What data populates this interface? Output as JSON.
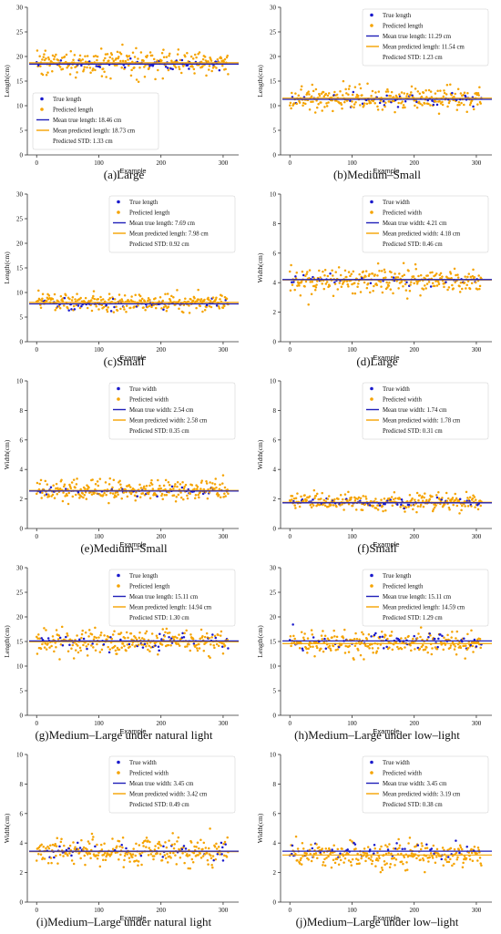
{
  "colors": {
    "true_series": "#1a1acc",
    "pred_series": "#f5a300",
    "true_mean_line": "#1f1fb8",
    "pred_mean_line": "#f5a300",
    "axis": "#333333",
    "text": "#111111"
  },
  "chart_data": [
    {
      "panel_id": "a",
      "type": "scatter",
      "caption": "(a)Large",
      "xlabel": "Example",
      "ylabel": "Length(cm)",
      "xlim": [
        -15,
        325
      ],
      "ylim": [
        0,
        30
      ],
      "xticks": [
        0,
        100,
        200,
        300
      ],
      "yticks": [
        0,
        5,
        10,
        15,
        20,
        25,
        30
      ],
      "n_points": 309,
      "legend_placement": "lower-left",
      "legend": [
        "True length",
        "Predicted length",
        "Mean true length: 18.46 cm",
        "Mean predicted length: 18.73 cm",
        "Predicted STD: 1.33 cm"
      ],
      "series": [
        {
          "name": "True length",
          "kind": "scatter",
          "mean": 18.46,
          "spread": 0.55
        },
        {
          "name": "Predicted length",
          "kind": "scatter",
          "mean": 18.73,
          "spread": 1.33
        },
        {
          "name": "Mean true length: 18.46 cm",
          "kind": "hline",
          "y": 18.46
        },
        {
          "name": "Mean predicted length: 18.73 cm",
          "kind": "hline",
          "y": 18.73
        }
      ]
    },
    {
      "panel_id": "b",
      "type": "scatter",
      "caption": "(b)Medium–Small",
      "xlabel": "Example",
      "ylabel": "Length(cm)",
      "xlim": [
        -15,
        325
      ],
      "ylim": [
        0,
        30
      ],
      "xticks": [
        0,
        100,
        200,
        300
      ],
      "yticks": [
        0,
        5,
        10,
        15,
        20,
        25,
        30
      ],
      "n_points": 309,
      "legend_placement": "upper-right",
      "legend": [
        "True length",
        "Predicted length",
        "Mean true length: 11.29 cm",
        "Mean predicted length: 11.54 cm",
        "Predicted STD: 1.23 cm"
      ],
      "series": [
        {
          "name": "True length",
          "kind": "scatter",
          "mean": 11.29,
          "spread": 0.7
        },
        {
          "name": "Predicted length",
          "kind": "scatter",
          "mean": 11.54,
          "spread": 1.23
        },
        {
          "name": "Mean true length: 11.29 cm",
          "kind": "hline",
          "y": 11.29
        },
        {
          "name": "Mean predicted length: 11.54 cm",
          "kind": "hline",
          "y": 11.54
        }
      ]
    },
    {
      "panel_id": "c",
      "type": "scatter",
      "caption": "(c)Small",
      "xlabel": "Example",
      "ylabel": "Length(cm)",
      "xlim": [
        -15,
        325
      ],
      "ylim": [
        0,
        30
      ],
      "xticks": [
        0,
        100,
        200,
        300
      ],
      "yticks": [
        0,
        5,
        10,
        15,
        20,
        25,
        30
      ],
      "n_points": 309,
      "legend_placement": "upper-right",
      "legend": [
        "True length",
        "Predicted length",
        "Mean true length: 7.69 cm",
        "Mean predicted length: 7.98 cm",
        "Predicted STD: 0.92 cm"
      ],
      "series": [
        {
          "name": "True length",
          "kind": "scatter",
          "mean": 7.69,
          "spread": 0.6
        },
        {
          "name": "Predicted length",
          "kind": "scatter",
          "mean": 7.98,
          "spread": 0.92
        },
        {
          "name": "Mean true length: 7.69 cm",
          "kind": "hline",
          "y": 7.69
        },
        {
          "name": "Mean predicted length: 7.98 cm",
          "kind": "hline",
          "y": 7.98
        }
      ]
    },
    {
      "panel_id": "d",
      "type": "scatter",
      "caption": "(d)Large",
      "xlabel": "Example",
      "ylabel": "Width(cm)",
      "xlim": [
        -15,
        325
      ],
      "ylim": [
        0,
        10
      ],
      "xticks": [
        0,
        100,
        200,
        300
      ],
      "yticks": [
        0,
        2,
        4,
        6,
        8,
        10
      ],
      "n_points": 309,
      "legend_placement": "upper-right",
      "legend": [
        "True width",
        "Predicted width",
        "Mean true width: 4.21 cm",
        "Mean predicted width: 4.18 cm",
        "Predicted STD: 0.46 cm"
      ],
      "series": [
        {
          "name": "True width",
          "kind": "scatter",
          "mean": 4.21,
          "spread": 0.2
        },
        {
          "name": "Predicted width",
          "kind": "scatter",
          "mean": 4.18,
          "spread": 0.46
        },
        {
          "name": "Mean true width: 4.21 cm",
          "kind": "hline",
          "y": 4.21
        },
        {
          "name": "Mean predicted width: 4.18 cm",
          "kind": "hline",
          "y": 4.18
        }
      ]
    },
    {
      "panel_id": "e",
      "type": "scatter",
      "caption": "(e)Medium–Small",
      "xlabel": "Example",
      "ylabel": "Width(cm)",
      "xlim": [
        -15,
        325
      ],
      "ylim": [
        0,
        10
      ],
      "xticks": [
        0,
        100,
        200,
        300
      ],
      "yticks": [
        0,
        2,
        4,
        6,
        8,
        10
      ],
      "n_points": 309,
      "legend_placement": "upper-right",
      "legend": [
        "True width",
        "Predicted width",
        "Mean true width: 2.54 cm",
        "Mean predicted width: 2.58 cm",
        "Predicted STD: 0.35 cm"
      ],
      "series": [
        {
          "name": "True width",
          "kind": "scatter",
          "mean": 2.54,
          "spread": 0.18
        },
        {
          "name": "Predicted width",
          "kind": "scatter",
          "mean": 2.58,
          "spread": 0.35
        },
        {
          "name": "Mean true width: 2.54 cm",
          "kind": "hline",
          "y": 2.54
        },
        {
          "name": "Mean predicted width: 2.58 cm",
          "kind": "hline",
          "y": 2.58
        }
      ]
    },
    {
      "panel_id": "f",
      "type": "scatter",
      "caption": "(f)Small",
      "xlabel": "Example",
      "ylabel": "Width(cm)",
      "xlim": [
        -15,
        325
      ],
      "ylim": [
        0,
        10
      ],
      "xticks": [
        0,
        100,
        200,
        300
      ],
      "yticks": [
        0,
        2,
        4,
        6,
        8,
        10
      ],
      "n_points": 309,
      "legend_placement": "upper-right",
      "legend": [
        "True width",
        "Predicted width",
        "Mean true width: 1.74 cm",
        "Mean predicted width: 1.78 cm",
        "Predicted STD: 0.31 cm"
      ],
      "series": [
        {
          "name": "True width",
          "kind": "scatter",
          "mean": 1.74,
          "spread": 0.15
        },
        {
          "name": "Predicted width",
          "kind": "scatter",
          "mean": 1.78,
          "spread": 0.31
        },
        {
          "name": "Mean true width: 1.74 cm",
          "kind": "hline",
          "y": 1.74
        },
        {
          "name": "Mean predicted width: 1.78 cm",
          "kind": "hline",
          "y": 1.78
        }
      ]
    },
    {
      "panel_id": "g",
      "type": "scatter",
      "caption": "(g)Medium–Large under natural light",
      "xlabel": "Example",
      "ylabel": "Length(cm)",
      "xlim": [
        -15,
        325
      ],
      "ylim": [
        0,
        30
      ],
      "xticks": [
        0,
        100,
        200,
        300
      ],
      "yticks": [
        0,
        5,
        10,
        15,
        20,
        25,
        30
      ],
      "n_points": 309,
      "legend_placement": "upper-right",
      "legend": [
        "True length",
        "Predicted length",
        "Mean true length: 15.11 cm",
        "Mean predicted length: 14.94 cm",
        "Predicted STD: 1.30 cm"
      ],
      "series": [
        {
          "name": "True length",
          "kind": "scatter",
          "mean": 15.11,
          "spread": 0.9
        },
        {
          "name": "Predicted length",
          "kind": "scatter",
          "mean": 14.94,
          "spread": 1.3
        },
        {
          "name": "Mean true length: 15.11 cm",
          "kind": "hline",
          "y": 15.11
        },
        {
          "name": "Mean predicted length: 14.94 cm",
          "kind": "hline",
          "y": 14.94
        }
      ]
    },
    {
      "panel_id": "h",
      "type": "scatter",
      "caption": "(h)Medium–Large under low–light",
      "xlabel": "Example",
      "ylabel": "Length(cm)",
      "xlim": [
        -15,
        325
      ],
      "ylim": [
        0,
        30
      ],
      "xticks": [
        0,
        100,
        200,
        300
      ],
      "yticks": [
        0,
        5,
        10,
        15,
        20,
        25,
        30
      ],
      "n_points": 309,
      "legend_placement": "upper-right",
      "legend": [
        "True length",
        "Predicted length",
        "Mean true length: 15.11 cm",
        "Mean predicted length: 14.59 cm",
        "Predicted STD: 1.29 cm"
      ],
      "series": [
        {
          "name": "True length",
          "kind": "scatter",
          "mean": 15.11,
          "spread": 0.9
        },
        {
          "name": "Predicted length",
          "kind": "scatter",
          "mean": 14.59,
          "spread": 1.29
        },
        {
          "name": "Mean true length: 15.11 cm",
          "kind": "hline",
          "y": 15.11
        },
        {
          "name": "Mean predicted length: 14.59 cm",
          "kind": "hline",
          "y": 14.59
        }
      ]
    },
    {
      "panel_id": "i",
      "type": "scatter",
      "caption": "(i)Medium–Large under natural light",
      "xlabel": "Example",
      "ylabel": "Width(cm)",
      "xlim": [
        -15,
        325
      ],
      "ylim": [
        0,
        10
      ],
      "xticks": [
        0,
        100,
        200,
        300
      ],
      "yticks": [
        0,
        2,
        4,
        6,
        8,
        10
      ],
      "n_points": 309,
      "legend_placement": "upper-right",
      "legend": [
        "True width",
        "Predicted width",
        "Mean true width: 3.45 cm",
        "Mean predicted width: 3.42 cm",
        "Predicted STD: 0.49 cm"
      ],
      "series": [
        {
          "name": "True width",
          "kind": "scatter",
          "mean": 3.45,
          "spread": 0.3
        },
        {
          "name": "Predicted width",
          "kind": "scatter",
          "mean": 3.42,
          "spread": 0.49
        },
        {
          "name": "Mean true width: 3.45 cm",
          "kind": "hline",
          "y": 3.45
        },
        {
          "name": "Mean predicted width: 3.42 cm",
          "kind": "hline",
          "y": 3.42
        }
      ]
    },
    {
      "panel_id": "j",
      "type": "scatter",
      "caption": "(j)Medium–Large under low–light",
      "xlabel": "Example",
      "ylabel": "Width(cm)",
      "xlim": [
        -15,
        325
      ],
      "ylim": [
        0,
        10
      ],
      "xticks": [
        0,
        100,
        200,
        300
      ],
      "yticks": [
        0,
        2,
        4,
        6,
        8,
        10
      ],
      "n_points": 309,
      "legend_placement": "upper-right",
      "legend": [
        "True width",
        "Predicted width",
        "Mean true width: 3.45 cm",
        "Mean predicted width: 3.19 cm",
        "Predicted STD: 0.38 cm"
      ],
      "series": [
        {
          "name": "True width",
          "kind": "scatter",
          "mean": 3.45,
          "spread": 0.3
        },
        {
          "name": "Predicted width",
          "kind": "scatter",
          "mean": 3.19,
          "spread": 0.38
        },
        {
          "name": "Mean true width: 3.45 cm",
          "kind": "hline",
          "y": 3.45
        },
        {
          "name": "Mean predicted width: 3.19 cm",
          "kind": "hline",
          "y": 3.19
        }
      ]
    }
  ]
}
